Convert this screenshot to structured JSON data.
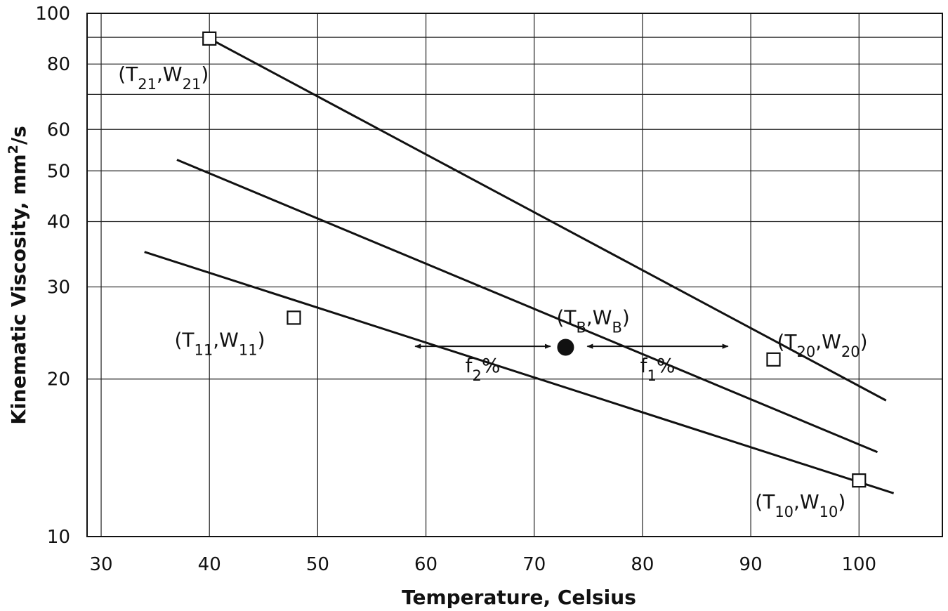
{
  "chart_data": {
    "type": "line",
    "xlabel": "Temperature, Celsius",
    "ylabel": "Kinematic Viscosity, mm²/s",
    "ylabel_parts": [
      "Kinematic Viscosity, mm",
      "2",
      "/s"
    ],
    "y_scale": "log",
    "xlim": [
      28.7,
      107.7
    ],
    "ylim": [
      10,
      100
    ],
    "grid": true,
    "x_ticks": [
      30,
      40,
      50,
      60,
      70,
      80,
      90,
      100
    ],
    "x_tick_labels": [
      "30",
      "40",
      "50",
      "60",
      "70",
      "80",
      "90",
      "100"
    ],
    "y_gridlines": [
      10,
      20,
      30,
      40,
      50,
      60,
      70,
      80,
      90,
      100
    ],
    "y_ticks": [
      10,
      20,
      30,
      40,
      50,
      60,
      80,
      100
    ],
    "y_tick_labels": [
      "10",
      "20",
      "30",
      "40",
      "50",
      "60",
      "80",
      "100"
    ],
    "series": [
      {
        "x": [
          40,
          102.5
        ],
        "y": [
          89.5,
          18.2
        ]
      },
      {
        "x": [
          37,
          101.7
        ],
        "y": [
          52.5,
          14.5
        ]
      },
      {
        "x": [
          34,
          103.2
        ],
        "y": [
          35,
          12.1
        ]
      }
    ],
    "markers": [
      {
        "shape": "square",
        "x": 40,
        "y": 89.5,
        "label": [
          "(T",
          "21",
          ",W",
          "21",
          ")"
        ]
      },
      {
        "shape": "square",
        "x": 47.8,
        "y": 26.2,
        "label": [
          "(T",
          "11",
          ",W",
          "11",
          ")"
        ]
      },
      {
        "shape": "square",
        "x": 92.1,
        "y": 21.8,
        "label": [
          "(T",
          "20",
          ",W",
          "20",
          ")"
        ]
      },
      {
        "shape": "square",
        "x": 100,
        "y": 12.8,
        "label": [
          "(T",
          "10",
          ",W",
          "10",
          ")"
        ]
      },
      {
        "shape": "circle",
        "x": 72.9,
        "y": 23,
        "label": [
          "(T",
          "B",
          ",W",
          "B",
          ")"
        ]
      }
    ],
    "annotations": [
      {
        "type": "double-arrow",
        "x": [
          59,
          71.5
        ],
        "y": 23.1,
        "label": [
          "f",
          "2",
          "%"
        ]
      },
      {
        "type": "double-arrow",
        "x": [
          74.9,
          87.9
        ],
        "y": 23.1,
        "label": [
          "f",
          "1",
          "%"
        ]
      }
    ]
  }
}
